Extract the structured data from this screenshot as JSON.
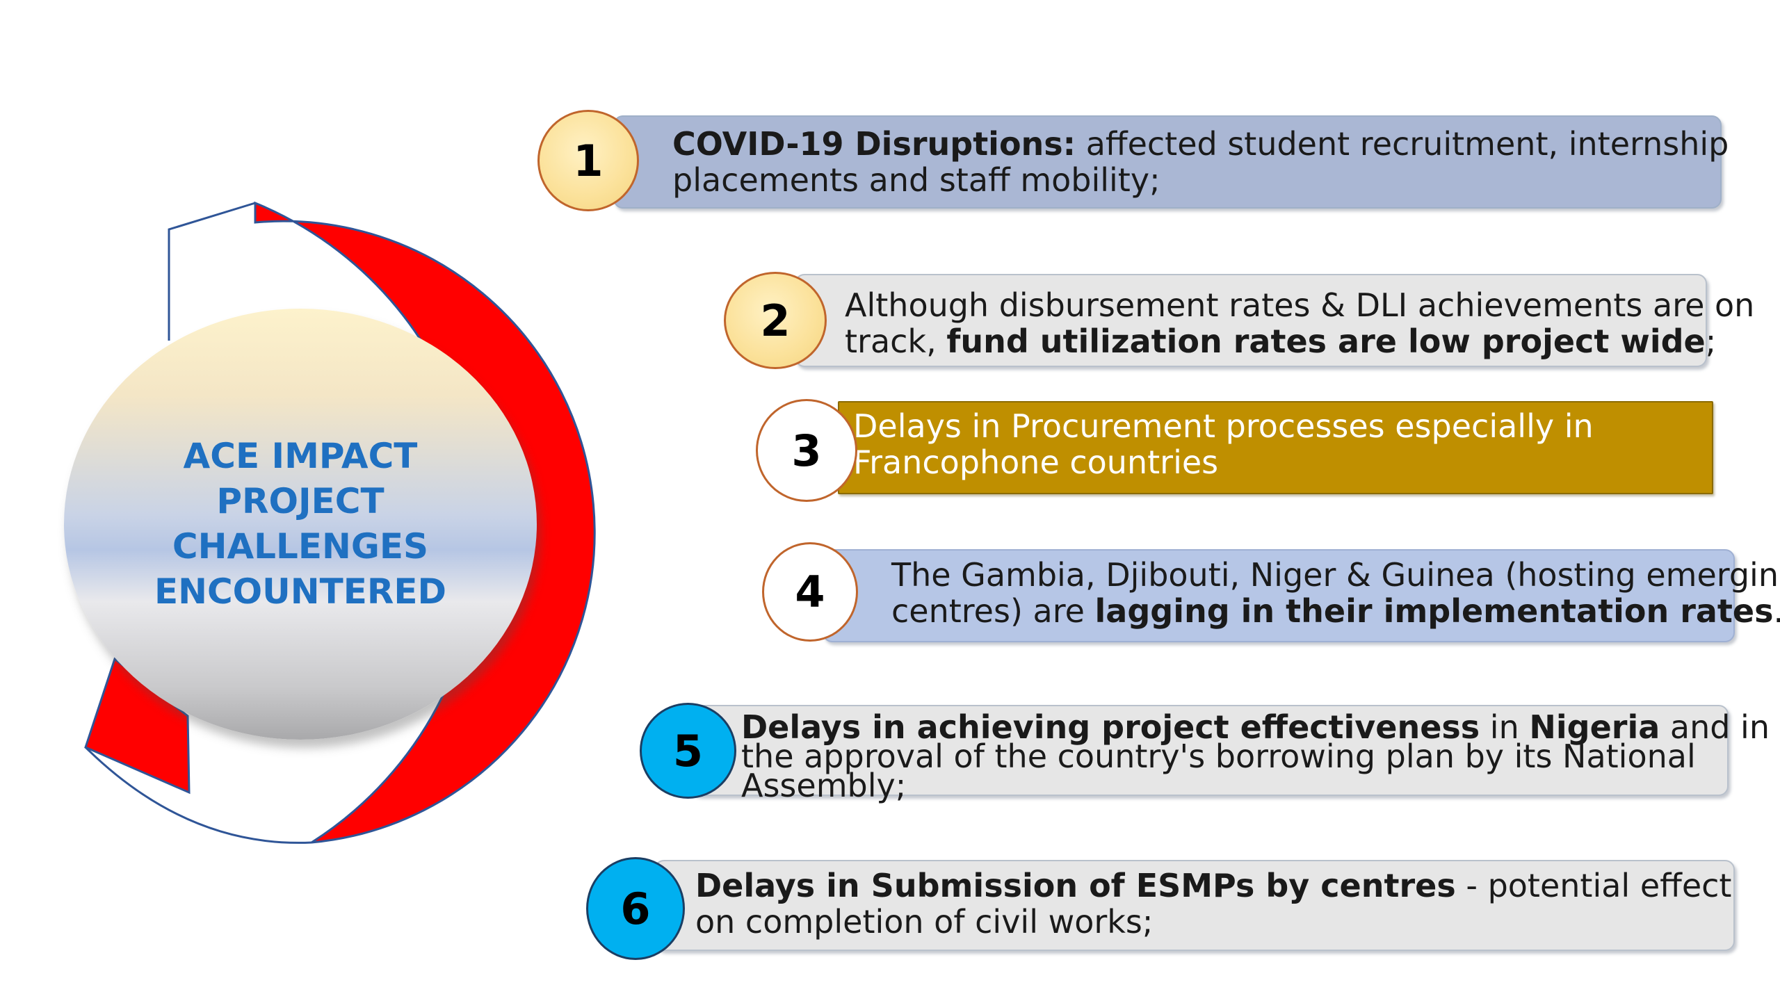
{
  "hub": {
    "title": "ACE IMPACT\nPROJECT\nCHALLENGES\nENCOUNTERED"
  },
  "colors": {
    "hub_text": "#1f70c1",
    "ring_red": "#ff0000",
    "badge_yellow": "#fbe199",
    "badge_cyan": "#00b0f0",
    "bar_blue": "#aab7d4",
    "bar_grey": "#e6e6e6",
    "bar_gold": "#bf8f00"
  },
  "items": [
    {
      "number": "1",
      "parts": [
        {
          "text": "COVID-19 Disruptions:",
          "bold": true
        },
        {
          "text": " affected student recruitment, internship",
          "bold": false
        },
        {
          "text": "placements and staff mobility;",
          "bold": false,
          "br": true
        }
      ]
    },
    {
      "number": "2",
      "parts": [
        {
          "text": "Although disbursement rates & DLI achievements are on",
          "bold": false
        },
        {
          "text": "track, ",
          "bold": false,
          "br": true
        },
        {
          "text": "fund utilization rates are low project wide",
          "bold": true
        },
        {
          "text": ";",
          "bold": false
        }
      ]
    },
    {
      "number": "3",
      "parts": [
        {
          "text": "Delays in Procurement processes especially in",
          "bold": false
        },
        {
          "text": "Francophone countries",
          "bold": false,
          "br": true
        }
      ]
    },
    {
      "number": "4",
      "parts": [
        {
          "text": "The Gambia, Djibouti, Niger & Guinea (hosting emerging",
          "bold": false
        },
        {
          "text": "centres) are ",
          "bold": false,
          "br": true
        },
        {
          "text": "lagging in their implementation rates",
          "bold": true
        },
        {
          "text": ".",
          "bold": false
        }
      ]
    },
    {
      "number": "5",
      "parts": [
        {
          "text": "Delays in achieving project effectiveness",
          "bold": true
        },
        {
          "text": " in ",
          "bold": false
        },
        {
          "text": "Nigeria",
          "bold": true
        },
        {
          "text": " and in",
          "bold": false
        },
        {
          "text": "the approval of the country's borrowing plan by its National",
          "bold": false,
          "br": true
        },
        {
          "text": "Assembly;",
          "bold": false,
          "br": true
        }
      ]
    },
    {
      "number": "6",
      "parts": [
        {
          "text": "Delays in Submission of ESMPs by centres",
          "bold": true
        },
        {
          "text": "  - potential effect",
          "bold": false
        },
        {
          "text": "on completion of civil works;",
          "bold": false,
          "br": true
        }
      ]
    }
  ]
}
